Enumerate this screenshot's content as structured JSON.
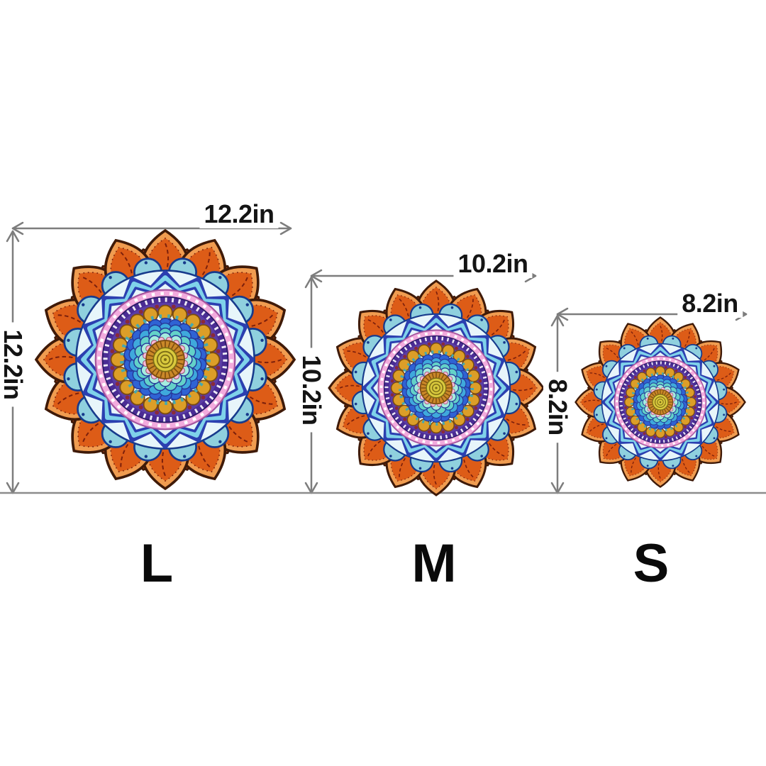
{
  "diagram_type": "product-size-comparison",
  "unit": "in",
  "sizes": [
    {
      "code": "L",
      "width": "12.2in",
      "height": "12.2in"
    },
    {
      "code": "M",
      "width": "10.2in",
      "height": "10.2in"
    },
    {
      "code": "S",
      "width": "8.2in",
      "height": "8.2in"
    }
  ],
  "colors": {
    "background": "#ffffff",
    "dimension_line": "#7d7d7d",
    "baseline": "#8c8c8c",
    "label_text": "#141414",
    "size_letter_text": "#0a0a0a"
  },
  "artwork": {
    "name": "orange-blue-mandala",
    "colors": {
      "petal_light": "#f09c50",
      "petal_main": "#dd5c17",
      "petal_back": "#c8481a",
      "petal_outline": "#3f1a08",
      "petal_vein": "#7c200c",
      "scallop_fill": "#8fd0de",
      "scallop_line": "#173a8c",
      "band_bg": "#e7f5fa",
      "chev_dark": "#2b3fb0",
      "chev_light": "#7fd2ea",
      "pink": "#f2abdd",
      "pink_line": "#a4549c",
      "purple_dark": "#4a2c94",
      "purple": "#5b3da6",
      "gold": "#dc9e28",
      "gold_line": "#7c4c10",
      "maroon": "#8a2a3a",
      "white_ring": "#f7fbfb",
      "ring_line": "#26389a",
      "teal_tick": "#45a8b0",
      "scale_deep": "#2446b4",
      "scale_blue": "#2f63d4",
      "scale_mid": "#3fa9dc",
      "scale_teal": "#63d2c8",
      "scale_pale": "#a5ecdf",
      "center_gold": "#ca8828",
      "pink_dot": "#f6bada",
      "center_fill": "#d9c93d",
      "center_line": "#7c6c16"
    }
  }
}
